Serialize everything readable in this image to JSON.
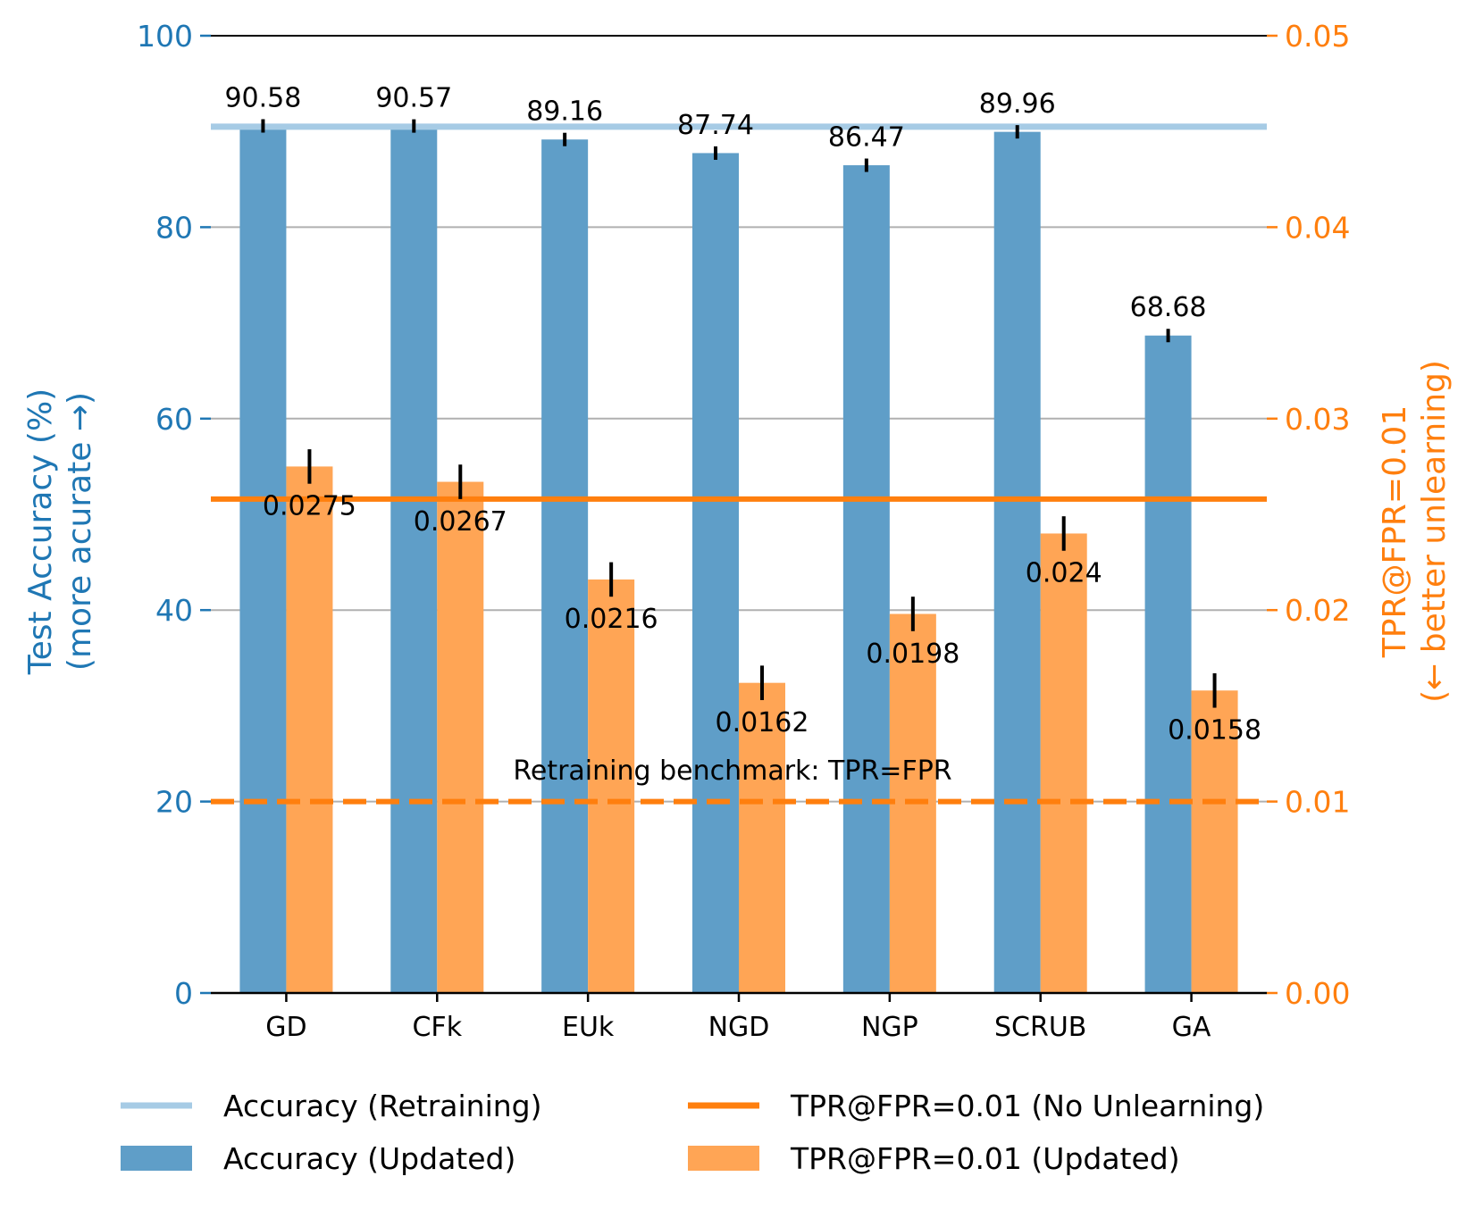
{
  "chart_data": {
    "type": "bar",
    "categories": [
      "GD",
      "CFk",
      "EUk",
      "NGD",
      "NGP",
      "SCRUB",
      "GA"
    ],
    "series": [
      {
        "name": "Accuracy (Updated)",
        "axis": "left",
        "color": "#5f9ec8",
        "values": [
          90.58,
          90.57,
          89.16,
          87.74,
          86.47,
          89.96,
          68.68
        ],
        "labels": [
          "90.58",
          "90.57",
          "89.16",
          "87.74",
          "86.47",
          "89.96",
          "68.68"
        ],
        "errors": [
          0.7,
          0.7,
          0.7,
          0.7,
          0.7,
          0.7,
          0.7
        ]
      },
      {
        "name": "TPR@FPR=0.01 (Updated)",
        "axis": "right",
        "color": "#ffa555",
        "values": [
          0.0275,
          0.0267,
          0.0216,
          0.0162,
          0.0198,
          0.024,
          0.0158
        ],
        "labels": [
          "0.0275",
          "0.0267",
          "0.0216",
          "0.0162",
          "0.0198",
          "0.024",
          "0.0158"
        ],
        "errors": [
          0.0009,
          0.0009,
          0.0009,
          0.0009,
          0.0009,
          0.0009,
          0.0009
        ]
      }
    ],
    "reference_lines": [
      {
        "name": "Accuracy (Retraining)",
        "axis": "left",
        "value": 90.5,
        "color": "#a6cbe5",
        "style": "solid"
      },
      {
        "name": "TPR@FPR=0.01 (No Unlearning)",
        "axis": "right",
        "value": 0.0258,
        "color": "#ff7f0e",
        "style": "solid"
      },
      {
        "name": "Retraining benchmark: TPR=FPR",
        "axis": "right",
        "value": 0.01,
        "color": "#ff7f0e",
        "style": "dashed"
      }
    ],
    "annotation": "Retraining benchmark: TPR=FPR",
    "y_left": {
      "label_line1": "Test Accuracy (%)",
      "label_line2": "(more acurate →)",
      "ylim": [
        0,
        100
      ],
      "ticks": [
        0,
        20,
        40,
        60,
        80,
        100
      ],
      "tick_labels": [
        "0",
        "20",
        "40",
        "60",
        "80",
        "100"
      ],
      "color": "#1f77b4"
    },
    "y_right": {
      "label_line1": "TPR@FPR=0.01",
      "label_line2": "(← better unlearning)",
      "ylim": [
        0,
        0.05
      ],
      "ticks": [
        0,
        0.01,
        0.02,
        0.03,
        0.04,
        0.05
      ],
      "tick_labels": [
        "0.00",
        "0.01",
        "0.02",
        "0.03",
        "0.04",
        "0.05"
      ],
      "color": "#ff7f0e"
    },
    "grid": true,
    "legend": {
      "position": "bottom",
      "entries": [
        {
          "label": "Accuracy (Retraining)",
          "kind": "line",
          "color": "#a6cbe5"
        },
        {
          "label": "TPR@FPR=0.01 (No Unlearning)",
          "kind": "line",
          "color": "#ff7f0e"
        },
        {
          "label": "Accuracy (Updated)",
          "kind": "patch",
          "color": "#5f9ec8"
        },
        {
          "label": "TPR@FPR=0.01 (Updated)",
          "kind": "patch",
          "color": "#ffa555"
        }
      ]
    }
  }
}
